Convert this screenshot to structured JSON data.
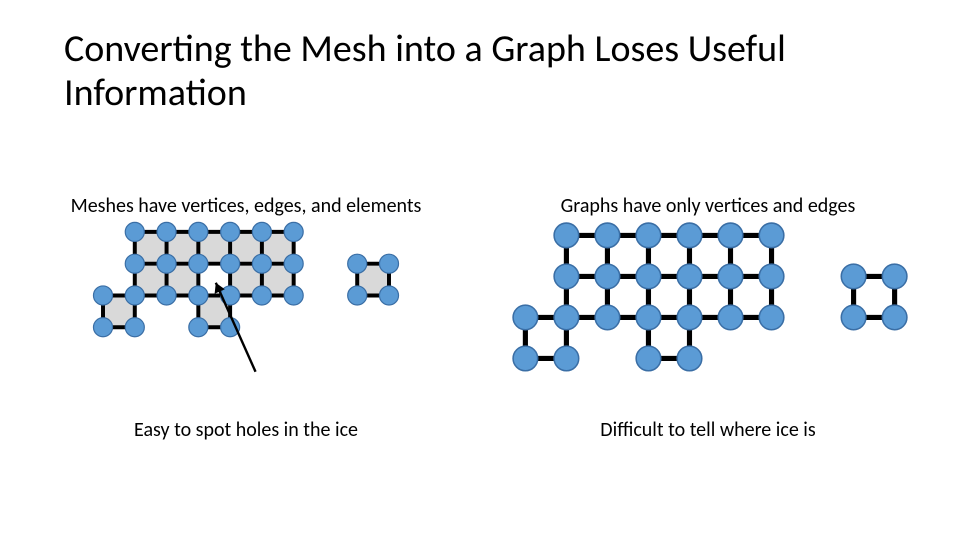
{
  "title": "Converting the Mesh into a Graph Loses Useful Information",
  "left": {
    "subtitle": "Meshes have vertices, edges, and elements",
    "caption": "Easy to spot holes in the ice"
  },
  "right": {
    "subtitle": "Graphs have only vertices and edges",
    "caption": "Difficult to tell where ice is"
  },
  "diagram": {
    "cell": 40,
    "node_radius": 12,
    "node_fill": "#5b9bd5",
    "node_stroke": "#3a6ea5",
    "node_stroke_width": 1.5,
    "edge_color": "#000000",
    "edge_width": 5,
    "face_fill": "#d9d9d9",
    "arrow_color": "#000000",
    "arrow_width": 3,
    "nodes": [
      [
        1,
        0
      ],
      [
        2,
        0
      ],
      [
        3,
        0
      ],
      [
        4,
        0
      ],
      [
        5,
        0
      ],
      [
        6,
        0
      ],
      [
        1,
        1
      ],
      [
        2,
        1
      ],
      [
        3,
        1
      ],
      [
        4,
        1
      ],
      [
        5,
        1
      ],
      [
        6,
        1
      ],
      [
        8,
        1
      ],
      [
        9,
        1
      ],
      [
        0,
        2
      ],
      [
        1,
        2
      ],
      [
        2,
        2
      ],
      [
        3,
        2
      ],
      [
        4,
        2
      ],
      [
        5,
        2
      ],
      [
        6,
        2
      ],
      [
        8,
        2
      ],
      [
        9,
        2
      ],
      [
        0,
        3
      ],
      [
        1,
        3
      ],
      [
        3,
        3
      ],
      [
        4,
        3
      ]
    ],
    "edges": [
      [
        [
          1,
          0
        ],
        [
          2,
          0
        ]
      ],
      [
        [
          2,
          0
        ],
        [
          3,
          0
        ]
      ],
      [
        [
          3,
          0
        ],
        [
          4,
          0
        ]
      ],
      [
        [
          4,
          0
        ],
        [
          5,
          0
        ]
      ],
      [
        [
          5,
          0
        ],
        [
          6,
          0
        ]
      ],
      [
        [
          1,
          0
        ],
        [
          1,
          1
        ]
      ],
      [
        [
          2,
          0
        ],
        [
          2,
          1
        ]
      ],
      [
        [
          3,
          0
        ],
        [
          3,
          1
        ]
      ],
      [
        [
          4,
          0
        ],
        [
          4,
          1
        ]
      ],
      [
        [
          5,
          0
        ],
        [
          5,
          1
        ]
      ],
      [
        [
          6,
          0
        ],
        [
          6,
          1
        ]
      ],
      [
        [
          1,
          1
        ],
        [
          2,
          1
        ]
      ],
      [
        [
          2,
          1
        ],
        [
          3,
          1
        ]
      ],
      [
        [
          3,
          1
        ],
        [
          4,
          1
        ]
      ],
      [
        [
          4,
          1
        ],
        [
          5,
          1
        ]
      ],
      [
        [
          5,
          1
        ],
        [
          6,
          1
        ]
      ],
      [
        [
          8,
          1
        ],
        [
          9,
          1
        ]
      ],
      [
        [
          1,
          1
        ],
        [
          1,
          2
        ]
      ],
      [
        [
          2,
          1
        ],
        [
          2,
          2
        ]
      ],
      [
        [
          3,
          1
        ],
        [
          3,
          2
        ]
      ],
      [
        [
          4,
          1
        ],
        [
          4,
          2
        ]
      ],
      [
        [
          5,
          1
        ],
        [
          5,
          2
        ]
      ],
      [
        [
          6,
          1
        ],
        [
          6,
          2
        ]
      ],
      [
        [
          8,
          1
        ],
        [
          8,
          2
        ]
      ],
      [
        [
          9,
          1
        ],
        [
          9,
          2
        ]
      ],
      [
        [
          0,
          2
        ],
        [
          1,
          2
        ]
      ],
      [
        [
          1,
          2
        ],
        [
          2,
          2
        ]
      ],
      [
        [
          2,
          2
        ],
        [
          3,
          2
        ]
      ],
      [
        [
          3,
          2
        ],
        [
          4,
          2
        ]
      ],
      [
        [
          4,
          2
        ],
        [
          5,
          2
        ]
      ],
      [
        [
          5,
          2
        ],
        [
          6,
          2
        ]
      ],
      [
        [
          8,
          2
        ],
        [
          9,
          2
        ]
      ],
      [
        [
          0,
          2
        ],
        [
          0,
          3
        ]
      ],
      [
        [
          1,
          2
        ],
        [
          1,
          3
        ]
      ],
      [
        [
          3,
          2
        ],
        [
          3,
          3
        ]
      ],
      [
        [
          4,
          2
        ],
        [
          4,
          3
        ]
      ],
      [
        [
          0,
          3
        ],
        [
          1,
          3
        ]
      ],
      [
        [
          3,
          3
        ],
        [
          4,
          3
        ]
      ]
    ],
    "faces": [
      [
        1,
        0
      ],
      [
        2,
        0
      ],
      [
        3,
        0
      ],
      [
        4,
        0
      ],
      [
        5,
        0
      ],
      [
        1,
        1
      ],
      [
        2,
        1
      ],
      [
        4,
        1
      ],
      [
        5,
        1
      ],
      [
        8,
        1
      ],
      [
        0,
        2
      ],
      [
        3,
        2
      ]
    ],
    "arrow": {
      "from": [
        4.8,
        4.4
      ],
      "to": [
        3.55,
        1.6
      ]
    }
  }
}
